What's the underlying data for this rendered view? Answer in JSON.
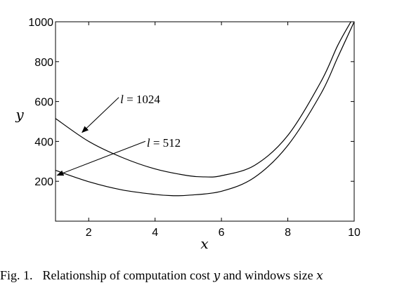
{
  "chart_data": {
    "type": "line",
    "xlabel": "x",
    "ylabel": "y",
    "xlim": [
      1,
      10
    ],
    "ylim": [
      0,
      1000
    ],
    "xticks": [
      2,
      4,
      6,
      8,
      10
    ],
    "yticks": [
      200,
      400,
      600,
      800,
      1000
    ],
    "grid": false,
    "series": [
      {
        "name": "l = 1024",
        "x": [
          1,
          2,
          3,
          4,
          5,
          5.5,
          6,
          7,
          8,
          9,
          9.5,
          9.9
        ],
        "y": [
          515,
          400,
          320,
          262,
          228,
          222,
          228,
          280,
          430,
          700,
          880,
          1000
        ]
      },
      {
        "name": "l = 512",
        "x": [
          1,
          2,
          3,
          4,
          4.5,
          5,
          6,
          7,
          8,
          9,
          9.5,
          10
        ],
        "y": [
          255,
          198,
          157,
          134,
          128,
          130,
          150,
          220,
          380,
          640,
          820,
          1000
        ]
      }
    ],
    "annotations": [
      {
        "text_prefix": "l",
        "text_suffix": " = 1024",
        "target_x": 1.8,
        "target_y": 445,
        "text_x": 2.95,
        "text_y": 610
      },
      {
        "text_prefix": "l",
        "text_suffix": " = 512",
        "target_x": 1.05,
        "target_y": 230,
        "text_x": 3.75,
        "text_y": 390
      }
    ]
  },
  "caption": {
    "number": "Fig. 1.",
    "text_before": "Relationship of computation cost ",
    "var_y": "y",
    "text_middle": " and windows size ",
    "var_x": "x"
  }
}
